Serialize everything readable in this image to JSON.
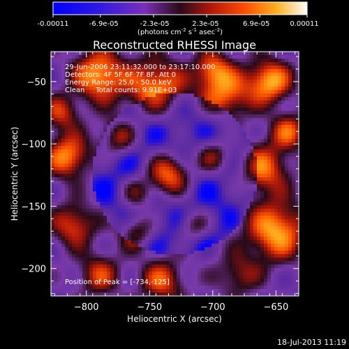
{
  "colorbar": {
    "tick_labels": [
      "-0.00011",
      "-6.9e-05",
      "-2.3e-05",
      "2.3e-05",
      "6.9e-05",
      "0.00011"
    ],
    "min": -0.00011,
    "max": 0.00011,
    "unit_prefix": "(photons cm",
    "unit_exp1": "-2",
    "unit_mid": " s",
    "unit_exp2": "-1",
    "unit_suffix": " asec",
    "unit_exp3": "-2",
    "unit_close": ")"
  },
  "chart_data": {
    "type": "heatmap",
    "title": "Reconstructed RHESSI Image",
    "xlabel": "Heliocentric X (arcsec)",
    "ylabel": "Heliocentric Y (arcsec)",
    "xlim": [
      -828,
      -632
    ],
    "ylim": [
      -222,
      -26
    ],
    "xticks": [
      -800,
      -750,
      -700,
      -650
    ],
    "xtick_labels": [
      "−800",
      "−750",
      "−700",
      "−650"
    ],
    "yticks": [
      -200,
      -150,
      -100,
      -50
    ],
    "ytick_labels": [
      "−200",
      "−150",
      "−100",
      "−50"
    ],
    "annotations": [
      "29-Jun-2006 23:11:32.000 to 23:17:10.000",
      "Detectors: 4F 5F 6F 7F 8F, Att 0",
      "Energy Range: 25.0 - 50.0 keV",
      "Clean     Total counts: 9.91E+03"
    ],
    "peak_label": "Position of Peak = [-734,-125]",
    "peak": [
      -734,
      -125
    ],
    "colorscale": [
      "#0000ff",
      "#5a2aa0",
      "#7a3aa8",
      "#2a0a18",
      "#b0180a",
      "#ff5a00",
      "#ffb020",
      "#ffff80",
      "#ffffff"
    ]
  },
  "footer": {
    "date": "18-Jul-2013 11:19"
  }
}
